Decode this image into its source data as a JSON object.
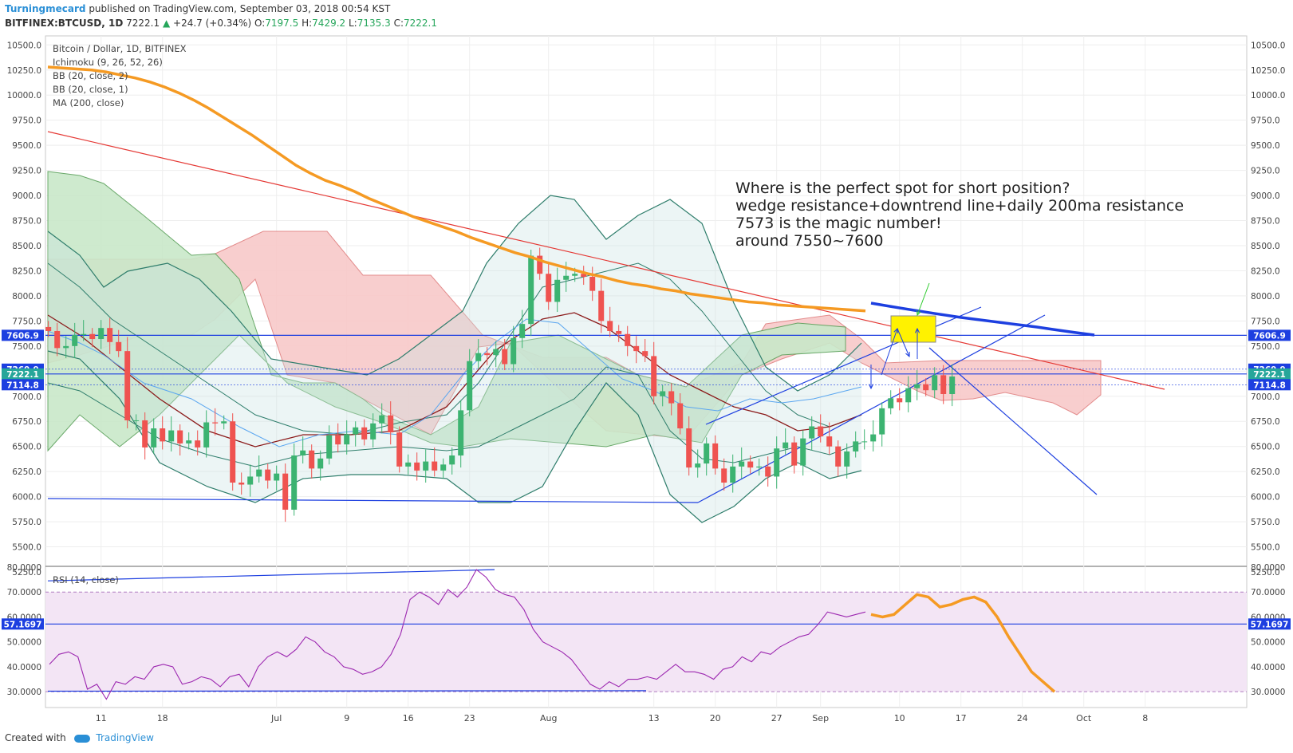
{
  "header": {
    "author": "Turningmecard",
    "published": "published on TradingView.com, September 03, 2018 00:54 KST",
    "symbol": "BITFINEX:BTCUSD, 1D",
    "last": "7222.1",
    "change": "+24.7 (+0.34%)",
    "o_label": "O:",
    "o_value": "7197.5",
    "h_label": "H:",
    "h_value": "7429.2",
    "l_label": "L:",
    "l_value": "7135.3",
    "c_label": "C:",
    "c_value": "7222.1"
  },
  "legend": {
    "title": "Bitcoin / Dollar, 1D, BITFINEX",
    "items": [
      "Ichimoku (9, 26, 52, 26)",
      "BB (20, close, 2)",
      "BB (20, close, 1)",
      "MA (200, close)"
    ],
    "placement": "top-left"
  },
  "annotation": {
    "lines": [
      "Where is the perfect spot for short position?",
      "wedge resistance+downtrend line+daily 200ma resistance",
      "7573 is the magic number!",
      "around 7550~7600"
    ]
  },
  "footer": {
    "created": "Created with",
    "brand": "TradingView"
  },
  "colors": {
    "up": "#26a69a",
    "up_candle": "#3cb371",
    "down_candle": "#ef5350",
    "ma200": "#f59a23",
    "bb2": "#2e7d6b",
    "bb1": "#5aa6f0",
    "kumo_red": "#f8c9c9",
    "kumo_green": "#c9e8c9",
    "trendline": "#e53935",
    "blue_line": "#1d3fe0",
    "rsi_line": "#9c27b0",
    "rsi_band": "#f3e5f5",
    "highlight": "#fff200"
  },
  "chart_data": [
    {
      "type": "candlestick",
      "title": "Bitcoin / Dollar, 1D, BITFINEX",
      "y_axis_ticks": [
        "5250.0",
        "5500.0",
        "5750.0",
        "6000.0",
        "6250.0",
        "6500.0",
        "6750.0",
        "7000.0",
        "7250.0",
        "7500.0",
        "7750.0",
        "8000.0",
        "8250.0",
        "8500.0",
        "8750.0",
        "9000.0",
        "9250.0",
        "9500.0",
        "9750.0",
        "10000.0",
        "10250.0",
        "10500.0"
      ],
      "ylim": [
        5250,
        10550
      ],
      "x_axis_ticks": [
        {
          "label": "11",
          "date": "2018-06-11"
        },
        {
          "label": "18",
          "date": "2018-06-18"
        },
        {
          "label": "Jul",
          "date": "2018-07-01"
        },
        {
          "label": "9",
          "date": "2018-07-09"
        },
        {
          "label": "16",
          "date": "2018-07-16"
        },
        {
          "label": "23",
          "date": "2018-07-23"
        },
        {
          "label": "Aug",
          "date": "2018-08-01"
        },
        {
          "label": "13",
          "date": "2018-08-13"
        },
        {
          "label": "20",
          "date": "2018-08-20"
        },
        {
          "label": "27",
          "date": "2018-08-27"
        },
        {
          "label": "Sep",
          "date": "2018-09-01"
        },
        {
          "label": "10",
          "date": "2018-09-10"
        },
        {
          "label": "17",
          "date": "2018-09-17"
        },
        {
          "label": "24",
          "date": "2018-09-24"
        },
        {
          "label": "Oct",
          "date": "2018-10-01"
        },
        {
          "label": "8",
          "date": "2018-10-08"
        }
      ],
      "price_labels": [
        {
          "value": "7606.9",
          "color": "#1d3fe0"
        },
        {
          "value": "7269.9",
          "color": "#1d3fe0"
        },
        {
          "value": "7222.1",
          "color": "#26a69a"
        },
        {
          "value": "7114.8",
          "color": "#1d3fe0"
        }
      ],
      "horizontal_lines": [
        7606.9,
        7222.1
      ],
      "close": [
        7650,
        7480,
        7500,
        7610,
        7620,
        7570,
        7680,
        7540,
        7450,
        6760,
        6760,
        6490,
        6680,
        6550,
        6660,
        6530,
        6560,
        6490,
        6740,
        6730,
        6750,
        6140,
        6120,
        6200,
        6270,
        6160,
        6230,
        5870,
        6410,
        6460,
        6280,
        6380,
        6610,
        6520,
        6620,
        6690,
        6570,
        6730,
        6810,
        6640,
        6300,
        6340,
        6260,
        6350,
        6260,
        6320,
        6410,
        6860,
        7350,
        7430,
        7410,
        7470,
        7320,
        7580,
        7720,
        8400,
        8220,
        7940,
        8160,
        8200,
        8220,
        8190,
        8050,
        7750,
        7650,
        7620,
        7500,
        7450,
        7400,
        7000,
        7050,
        6930,
        6680,
        6290,
        6330,
        6530,
        6280,
        6140,
        6300,
        6350,
        6290,
        6300,
        6200,
        6480,
        6540,
        6310,
        6580,
        6700,
        6600,
        6500,
        6300,
        6450,
        6550,
        6550,
        6620,
        6880,
        6980,
        6940,
        7080,
        7120,
        7060,
        7210,
        7022,
        7197
      ],
      "ma200": [
        10280,
        10270,
        10260,
        10250,
        10230,
        10200,
        10170,
        10130,
        10080,
        10020,
        9950,
        9870,
        9780,
        9690,
        9600,
        9500,
        9400,
        9300,
        9220,
        9150,
        9100,
        9040,
        8970,
        8910,
        8850,
        8790,
        8740,
        8690,
        8640,
        8580,
        8530,
        8480,
        8430,
        8390,
        8340,
        8300,
        8260,
        8220,
        8190,
        8150,
        8120,
        8100,
        8070,
        8050,
        8020,
        8000,
        7980,
        7960,
        7940,
        7930,
        7910,
        7900,
        7890,
        7880,
        7870,
        7860,
        7850
      ],
      "rsi": {
        "title": "RSI (14, close)",
        "y_axis_ticks": [
          "30.0000",
          "40.0000",
          "50.0000",
          "60.0000",
          "70.0000",
          "80.0000"
        ],
        "ylim": [
          23,
          80
        ],
        "bands": [
          30,
          70
        ],
        "current_label": "57.1697",
        "values": [
          41,
          45,
          46,
          44,
          31,
          33,
          27,
          34,
          33,
          36,
          35,
          40,
          41,
          40,
          33,
          34,
          36,
          35,
          32,
          36,
          37,
          32,
          40,
          44,
          46,
          44,
          47,
          52,
          50,
          46,
          44,
          40,
          39,
          37,
          38,
          40,
          45,
          53,
          67,
          70,
          68,
          65,
          71,
          68,
          72,
          79,
          76,
          71,
          69,
          68,
          63,
          55,
          50,
          48,
          46,
          43,
          38,
          33,
          31,
          34,
          32,
          35,
          35,
          36,
          35,
          38,
          41,
          38,
          38,
          37,
          35,
          39,
          40,
          44,
          42,
          46,
          45,
          48,
          50,
          52,
          53,
          57,
          62,
          61,
          60,
          61,
          62
        ],
        "projection": [
          61,
          60,
          61,
          65,
          69,
          68,
          64,
          65,
          67,
          68,
          66,
          60,
          52,
          45,
          38,
          34,
          30
        ]
      }
    }
  ]
}
